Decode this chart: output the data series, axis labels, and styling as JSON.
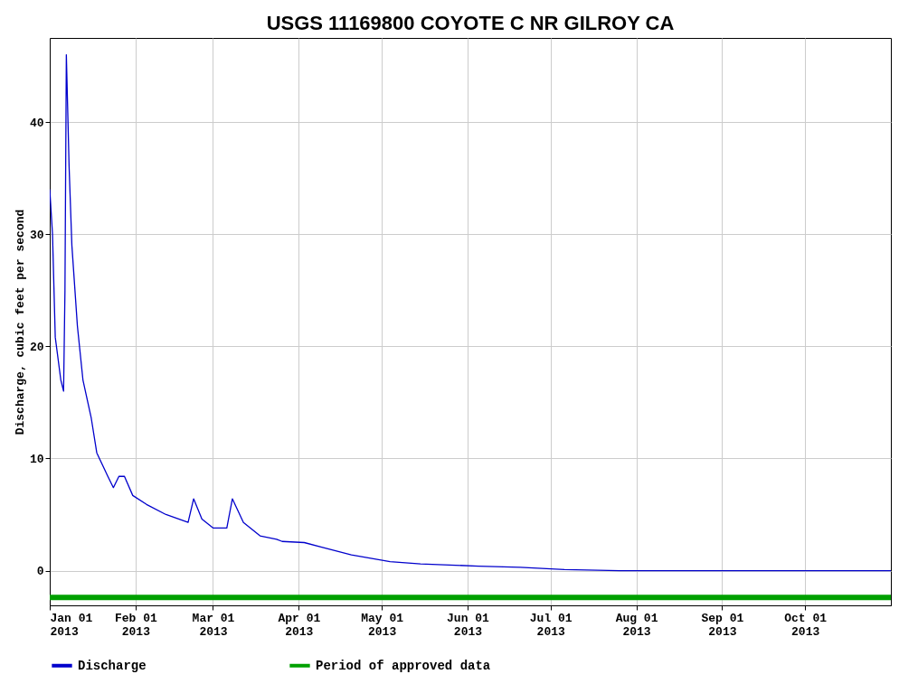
{
  "chart_data": {
    "type": "line",
    "title": "USGS 11169800 COYOTE C NR GILROY CA",
    "ylabel": "Discharge, cubic feet per second",
    "xlim": [
      "2013-01-01",
      "2013-11-01"
    ],
    "xticks": [
      {
        "value": "2013-01-01",
        "label": "Jan 01\n2013"
      },
      {
        "value": "2013-02-01",
        "label": "Feb 01\n2013"
      },
      {
        "value": "2013-03-01",
        "label": "Mar 01\n2013"
      },
      {
        "value": "2013-04-01",
        "label": "Apr 01\n2013"
      },
      {
        "value": "2013-05-01",
        "label": "May 01\n2013"
      },
      {
        "value": "2013-06-01",
        "label": "Jun 01\n2013"
      },
      {
        "value": "2013-07-01",
        "label": "Jul 01\n2013"
      },
      {
        "value": "2013-08-01",
        "label": "Aug 01\n2013"
      },
      {
        "value": "2013-09-01",
        "label": "Sep 01\n2013"
      },
      {
        "value": "2013-10-01",
        "label": "Oct 01\n2013"
      }
    ],
    "ylim": [
      -3.1,
      47.5
    ],
    "yticks": [
      0,
      10,
      20,
      30,
      40
    ],
    "grid": true,
    "legend": "bottom",
    "marker": "none",
    "line_style": "solid",
    "series": [
      {
        "name": "Discharge",
        "color": "#0000cc",
        "x": [
          "2013-01-01",
          "2013-01-02",
          "2013-01-03",
          "2013-01-05",
          "2013-01-06",
          "2013-01-06T12:00",
          "2013-01-07",
          "2013-01-08",
          "2013-01-09",
          "2013-01-11",
          "2013-01-13",
          "2013-01-16",
          "2013-01-18",
          "2013-01-22",
          "2013-01-24",
          "2013-01-26",
          "2013-01-28",
          "2013-01-31",
          "2013-02-05",
          "2013-02-12",
          "2013-02-20",
          "2013-02-22",
          "2013-02-25",
          "2013-03-01",
          "2013-03-06",
          "2013-03-08",
          "2013-03-12",
          "2013-03-18",
          "2013-03-24",
          "2013-03-26",
          "2013-04-03",
          "2013-04-09",
          "2013-04-20",
          "2013-05-04",
          "2013-05-15",
          "2013-06-05",
          "2013-06-20",
          "2013-07-06",
          "2013-07-26",
          "2013-11-01"
        ],
        "values": [
          34,
          30,
          20.8,
          17,
          16,
          25,
          46,
          36,
          29,
          21.8,
          17,
          13.6,
          10.5,
          8.4,
          7.4,
          8.4,
          8.4,
          6.7,
          5.9,
          5.0,
          4.3,
          6.4,
          4.6,
          3.8,
          3.8,
          6.4,
          4.3,
          3.1,
          2.8,
          2.6,
          2.5,
          2.1,
          1.4,
          0.8,
          0.6,
          0.4,
          0.3,
          0.1,
          0,
          0
        ]
      },
      {
        "name": "Period of approved data",
        "color": "#00a000",
        "x": [
          "2013-01-01",
          "2013-11-01"
        ],
        "values": [
          -2.4,
          -2.4
        ]
      }
    ]
  }
}
